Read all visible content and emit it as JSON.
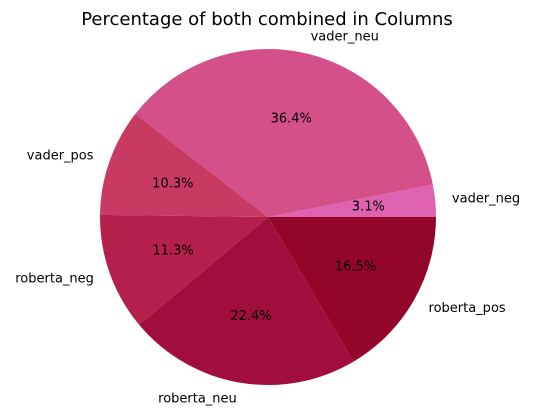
{
  "chart_data": {
    "type": "pie",
    "title": "Percentage of both combined in Columns",
    "start_angle_deg": 0,
    "direction": "counterclockwise",
    "slices": [
      {
        "label": "vader_neg",
        "percent": 3.1,
        "pct_text": "3.1%",
        "color": "#df62b1"
      },
      {
        "label": "vader_neu",
        "percent": 36.4,
        "pct_text": "36.4%",
        "color": "#d45088"
      },
      {
        "label": "vader_pos",
        "percent": 10.3,
        "pct_text": "10.3%",
        "color": "#c93a63"
      },
      {
        "label": "roberta_neg",
        "percent": 11.3,
        "pct_text": "11.3%",
        "color": "#b41f4b"
      },
      {
        "label": "roberta_neu",
        "percent": 22.4,
        "pct_text": "22.4%",
        "color": "#a10e3e"
      },
      {
        "label": "roberta_pos",
        "percent": 16.5,
        "pct_text": "16.5%",
        "color": "#93062a"
      }
    ]
  }
}
